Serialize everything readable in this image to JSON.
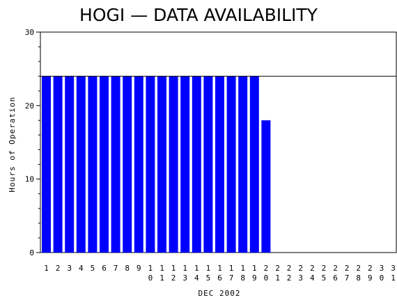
{
  "chart_data": {
    "type": "bar",
    "title": "HOGI — DATA AVAILABILITY",
    "xlabel": "DEC 2002",
    "ylabel": "Hours of Operation",
    "ylim": [
      0,
      30
    ],
    "yticks": [
      0,
      10,
      20,
      30
    ],
    "reference_line": 24,
    "bar_color": "#0000ff",
    "categories": [
      "1",
      "2",
      "3",
      "4",
      "5",
      "6",
      "7",
      "8",
      "9",
      "10",
      "11",
      "12",
      "13",
      "14",
      "15",
      "16",
      "17",
      "18",
      "19",
      "20",
      "21",
      "22",
      "23",
      "24",
      "25",
      "26",
      "27",
      "28",
      "29",
      "30",
      "31"
    ],
    "values": [
      24,
      24,
      24,
      24,
      24,
      24,
      24,
      24,
      24,
      24,
      24,
      24,
      24,
      24,
      24,
      24,
      24,
      24,
      24,
      18,
      0,
      0,
      0,
      0,
      0,
      0,
      0,
      0,
      0,
      0,
      0
    ],
    "grid": false,
    "legend": "none"
  }
}
